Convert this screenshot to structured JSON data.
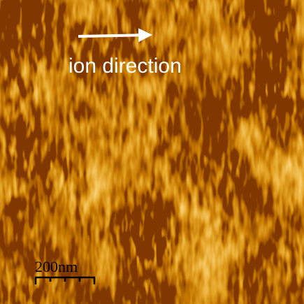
{
  "annotation": "ion direction",
  "scale_bar": "200nm"
}
